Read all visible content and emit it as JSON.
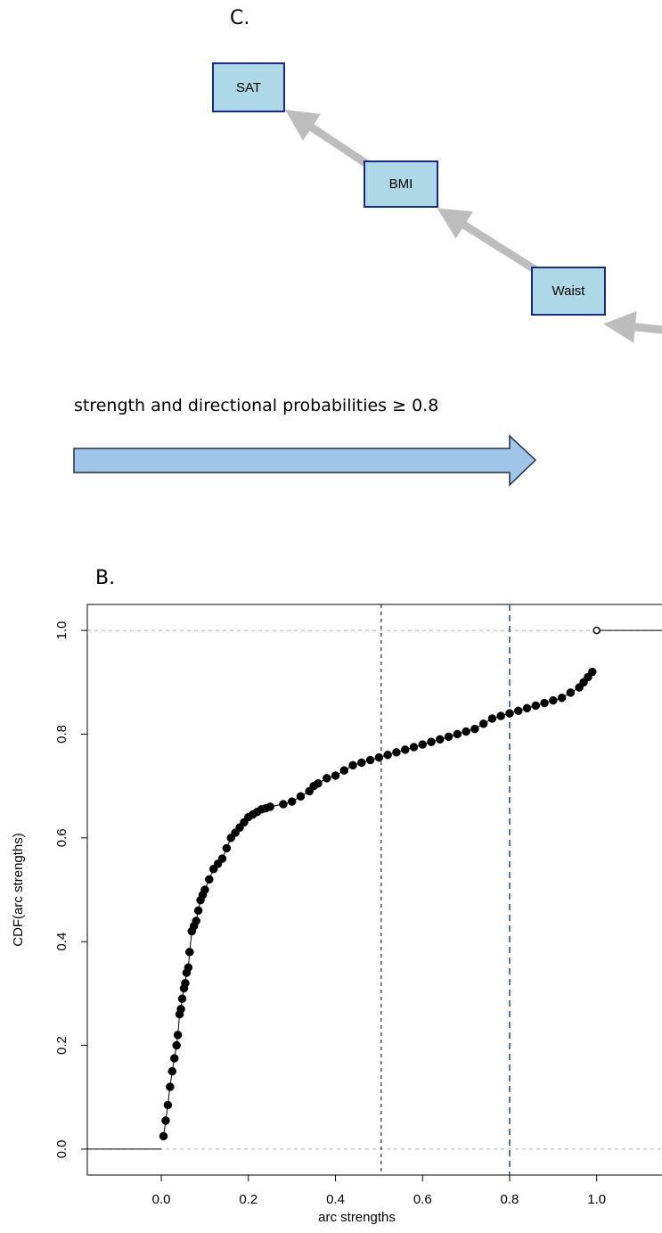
{
  "panel_c": {
    "label": "C.",
    "nodes": {
      "sat": "SAT",
      "bmi": "BMI",
      "waist": "Waist"
    },
    "legend": "strength and directional probabilities ≥ 0.8",
    "colors": {
      "node_fill": "#add8e6",
      "node_border": "#1b2a8a",
      "arc": "#bdbdbd",
      "legend_arrow": "#9fc5e8"
    }
  },
  "panel_b": {
    "label": "B."
  },
  "chart_data": {
    "type": "scatter",
    "title": "",
    "xlabel": "arc strengths",
    "ylabel": "CDF(arc strengths)",
    "xlim": [
      -0.17,
      1.15
    ],
    "ylim": [
      -0.05,
      1.05
    ],
    "x_ticks": [
      "0.0",
      "0.2",
      "0.4",
      "0.6",
      "0.8",
      "1.0"
    ],
    "y_ticks": [
      "0.0",
      "0.2",
      "0.4",
      "0.6",
      "0.8",
      "1.0"
    ],
    "reference_lines": {
      "horizontal_dashed_grey": [
        0.0,
        1.0
      ],
      "vertical_dashed_black": 0.505,
      "vertical_dashed_blue": 0.8
    },
    "colors": {
      "points": "#000000",
      "threshold_line": "#4a78a8",
      "grid": "#b0b0b0"
    },
    "series": [
      {
        "x": [
          0.005,
          0.01,
          0.015,
          0.02,
          0.025,
          0.03,
          0.035,
          0.038,
          0.042,
          0.045,
          0.048,
          0.052,
          0.055,
          0.058,
          0.062,
          0.065,
          0.07,
          0.075,
          0.08,
          0.085,
          0.09,
          0.095,
          0.1,
          0.11,
          0.12,
          0.13,
          0.14,
          0.15,
          0.16,
          0.17,
          0.18,
          0.19,
          0.2,
          0.21,
          0.22,
          0.23,
          0.24,
          0.25,
          0.28,
          0.3,
          0.32,
          0.34,
          0.35,
          0.36,
          0.38,
          0.4,
          0.42,
          0.44,
          0.46,
          0.48,
          0.5,
          0.52,
          0.54,
          0.56,
          0.58,
          0.6,
          0.62,
          0.64,
          0.66,
          0.68,
          0.7,
          0.72,
          0.74,
          0.76,
          0.78,
          0.8,
          0.82,
          0.84,
          0.86,
          0.88,
          0.9,
          0.92,
          0.94,
          0.96,
          0.97,
          0.98,
          0.99,
          1.0
        ],
        "y": [
          0.025,
          0.055,
          0.085,
          0.12,
          0.15,
          0.175,
          0.2,
          0.22,
          0.26,
          0.27,
          0.29,
          0.31,
          0.32,
          0.34,
          0.35,
          0.38,
          0.42,
          0.43,
          0.44,
          0.46,
          0.48,
          0.49,
          0.5,
          0.52,
          0.54,
          0.55,
          0.56,
          0.58,
          0.6,
          0.61,
          0.62,
          0.63,
          0.64,
          0.645,
          0.65,
          0.655,
          0.657,
          0.66,
          0.665,
          0.67,
          0.68,
          0.69,
          0.7,
          0.705,
          0.715,
          0.72,
          0.73,
          0.74,
          0.745,
          0.75,
          0.755,
          0.76,
          0.765,
          0.77,
          0.775,
          0.78,
          0.785,
          0.79,
          0.795,
          0.8,
          0.805,
          0.81,
          0.82,
          0.83,
          0.835,
          0.84,
          0.845,
          0.85,
          0.855,
          0.86,
          0.865,
          0.87,
          0.88,
          0.89,
          0.9,
          0.91,
          0.92,
          1.0
        ]
      }
    ],
    "step_flat_segments": [
      {
        "x": [
          -0.17,
          0.0
        ],
        "y": 0.0
      },
      {
        "x": [
          1.0,
          1.15
        ],
        "y": 1.0
      }
    ]
  }
}
